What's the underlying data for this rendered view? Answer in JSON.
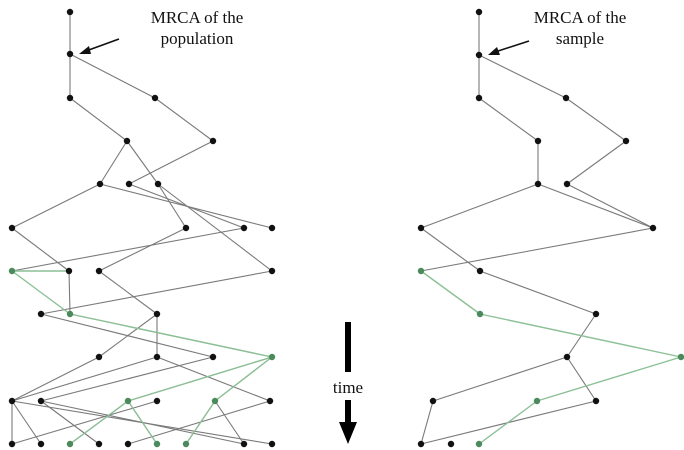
{
  "labels": {
    "population_mrca": [
      "MRCA of the",
      "population"
    ],
    "sample_mrca": [
      "MRCA of the",
      "sample"
    ],
    "time": "time"
  },
  "colors": {
    "node": "#111111",
    "sample_node": "#4a8a5c",
    "edge": "#7a7a7a",
    "sample_edge": "#8cc096"
  },
  "icons": {
    "population_arrow": "arrow-pointing-left",
    "sample_arrow": "arrow-pointing-left",
    "time_arrow": "arrow-pointing-down"
  }
}
